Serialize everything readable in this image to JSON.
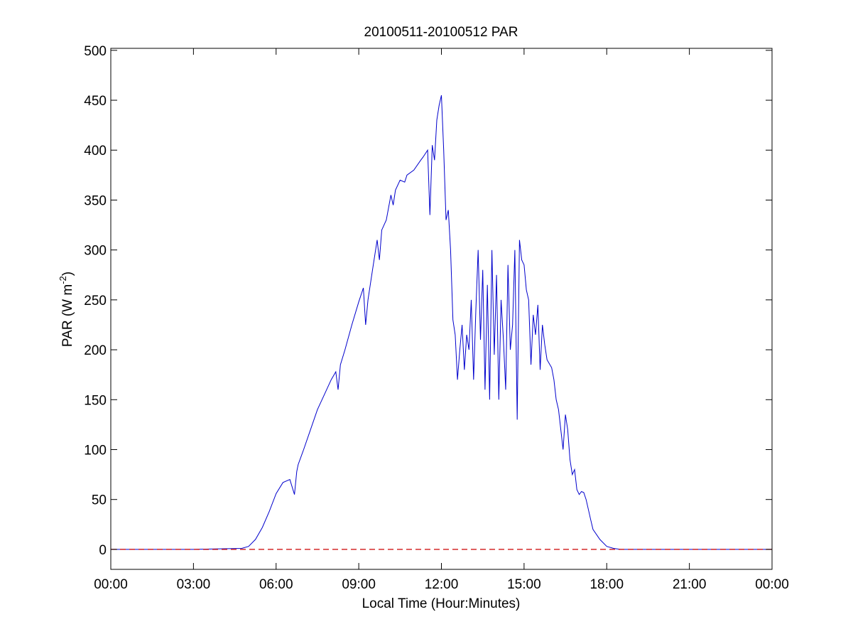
{
  "chart_data": {
    "type": "line",
    "title": "20100511-20100512 PAR",
    "xlabel": "Local Time (Hour:Minutes)",
    "ylabel": {
      "prefix": "PAR (W m",
      "superscript": "-2",
      "suffix": ")"
    },
    "xlim": [
      "00:00",
      "24:00"
    ],
    "ylim": [
      -20,
      502
    ],
    "x_ticks": [
      "00:00",
      "03:00",
      "06:00",
      "09:00",
      "12:00",
      "15:00",
      "18:00",
      "21:00",
      "00:00"
    ],
    "y_ticks": [
      0,
      50,
      100,
      150,
      200,
      250,
      300,
      350,
      400,
      450,
      500
    ],
    "grid": false,
    "series": [
      {
        "color": "#0000cc",
        "x": [
          "00:00",
          "03:00",
          "04:45",
          "05:00",
          "05:15",
          "05:30",
          "05:45",
          "06:00",
          "06:15",
          "06:30",
          "06:40",
          "06:45",
          "06:48",
          "07:00",
          "07:15",
          "07:30",
          "07:45",
          "08:00",
          "08:10",
          "08:15",
          "08:20",
          "08:30",
          "08:45",
          "09:00",
          "09:10",
          "09:15",
          "09:20",
          "09:30",
          "09:40",
          "09:45",
          "09:50",
          "10:00",
          "10:10",
          "10:15",
          "10:20",
          "10:30",
          "10:40",
          "10:45",
          "11:00",
          "11:15",
          "11:20",
          "11:30",
          "11:35",
          "11:40",
          "11:45",
          "11:50",
          "11:55",
          "12:00",
          "12:05",
          "12:10",
          "12:15",
          "12:20",
          "12:25",
          "12:30",
          "12:35",
          "12:40",
          "12:45",
          "12:50",
          "12:55",
          "13:00",
          "13:05",
          "13:10",
          "13:15",
          "13:20",
          "13:25",
          "13:30",
          "13:35",
          "13:40",
          "13:45",
          "13:50",
          "13:55",
          "14:00",
          "14:05",
          "14:10",
          "14:15",
          "14:20",
          "14:25",
          "14:30",
          "14:35",
          "14:40",
          "14:45",
          "14:50",
          "14:55",
          "15:00",
          "15:05",
          "15:10",
          "15:15",
          "15:20",
          "15:25",
          "15:30",
          "15:35",
          "15:40",
          "15:45",
          "15:50",
          "16:00",
          "16:05",
          "16:10",
          "16:15",
          "16:20",
          "16:25",
          "16:30",
          "16:35",
          "16:40",
          "16:45",
          "16:50",
          "16:55",
          "17:00",
          "17:05",
          "17:10",
          "17:15",
          "17:20",
          "17:25",
          "17:30",
          "17:45",
          "18:00",
          "18:15",
          "18:30",
          "18:45",
          "19:00",
          "19:15",
          "21:00",
          "24:00"
        ],
        "y": [
          0,
          0,
          1,
          3,
          10,
          22,
          38,
          56,
          67,
          70,
          55,
          78,
          85,
          100,
          120,
          140,
          155,
          170,
          178,
          160,
          185,
          200,
          225,
          248,
          262,
          225,
          250,
          280,
          310,
          290,
          320,
          330,
          355,
          345,
          360,
          370,
          368,
          375,
          380,
          390,
          393,
          400,
          335,
          405,
          390,
          430,
          445,
          455,
          400,
          330,
          340,
          300,
          230,
          215,
          170,
          200,
          225,
          180,
          215,
          200,
          250,
          170,
          240,
          300,
          210,
          280,
          160,
          265,
          150,
          300,
          195,
          275,
          150,
          250,
          210,
          160,
          285,
          200,
          225,
          300,
          130,
          310,
          290,
          285,
          260,
          250,
          185,
          235,
          215,
          245,
          180,
          225,
          205,
          190,
          182,
          170,
          150,
          140,
          120,
          100,
          135,
          120,
          90,
          75,
          80,
          60,
          55,
          58,
          57,
          50,
          40,
          30,
          20,
          10,
          3,
          1,
          0,
          0,
          0,
          0,
          0,
          0
        ]
      },
      {
        "color": "#cc0000",
        "dash": true,
        "x": [
          "00:00",
          "24:00"
        ],
        "y": [
          0,
          0
        ]
      }
    ]
  }
}
